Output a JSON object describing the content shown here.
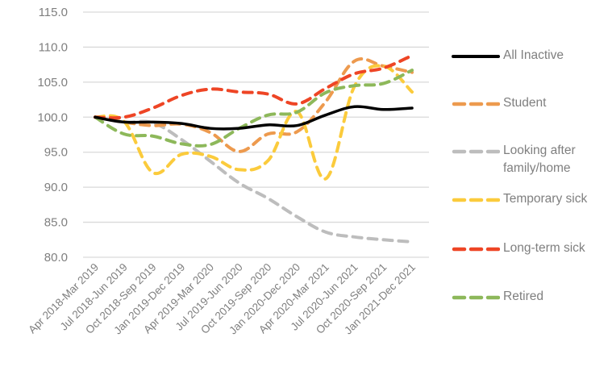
{
  "chart_data": {
    "type": "line",
    "title": "",
    "xlabel": "",
    "ylabel": "",
    "ylim": [
      80.0,
      115.0
    ],
    "yticks": [
      "115.0",
      "110.0",
      "105.0",
      "100.0",
      "95.0",
      "90.0",
      "85.0",
      "80.0"
    ],
    "grid": true,
    "legend_position": "right",
    "categories": [
      "Apr 2018-Mar 2019",
      "Jul 2018-Jun 2019",
      "Oct 2018-Sep 2019",
      "Jan 2019-Dec 2019",
      "Apr 2019-Mar 2020",
      "Jul 2019-Jun 2020",
      "Oct 2019-Sep 2020",
      "Jan 2020-Dec 2020",
      "Apr 2020-Mar 2021",
      "Jul 2020-Jun 2021",
      "Oct 2020-Sep 2021",
      "Jan 2021-Dec 2021"
    ],
    "series": [
      {
        "name": "All Inactive",
        "color": "#000000",
        "style": "solid",
        "values": [
          100.0,
          99.3,
          99.3,
          99.1,
          98.4,
          98.4,
          98.9,
          98.8,
          100.3,
          101.5,
          101.1,
          101.3
        ]
      },
      {
        "name": "Student",
        "color": "#ED9A4E",
        "style": "dashed",
        "values": [
          100.0,
          99.3,
          98.8,
          99.0,
          97.8,
          95.1,
          97.6,
          97.9,
          102.2,
          108.0,
          107.3,
          106.4
        ]
      },
      {
        "name": "Looking after family/home",
        "legend_lines": [
          "Looking after",
          "family/home"
        ],
        "color": "#BDBDBD",
        "style": "dashed",
        "values": [
          100.0,
          99.3,
          99.2,
          96.8,
          93.7,
          90.6,
          88.4,
          85.8,
          83.6,
          82.9,
          82.5,
          82.2
        ]
      },
      {
        "name": "Temporary sick",
        "color": "#FBCB3C",
        "style": "dashed",
        "values": [
          100.0,
          99.4,
          92.1,
          94.7,
          94.4,
          92.5,
          93.8,
          100.8,
          91.2,
          104.4,
          107.3,
          103.6
        ]
      },
      {
        "name": "Long-term sick",
        "color": "#EE4525",
        "style": "dashed",
        "values": [
          100.0,
          100.0,
          101.3,
          103.1,
          104.0,
          103.6,
          103.3,
          101.9,
          104.1,
          106.2,
          107.0,
          108.8
        ]
      },
      {
        "name": "Retired",
        "color": "#8DB85A",
        "style": "dashed",
        "values": [
          100.0,
          97.6,
          97.3,
          96.2,
          96.1,
          98.4,
          100.3,
          100.7,
          103.5,
          104.5,
          104.8,
          106.7
        ]
      }
    ]
  },
  "legend": {
    "items": [
      {
        "label": "All Inactive"
      },
      {
        "label": "Student"
      },
      {
        "label": "Looking after family/home"
      },
      {
        "label": "Temporary sick"
      },
      {
        "label": "Long-term sick"
      },
      {
        "label": "Retired"
      }
    ]
  }
}
